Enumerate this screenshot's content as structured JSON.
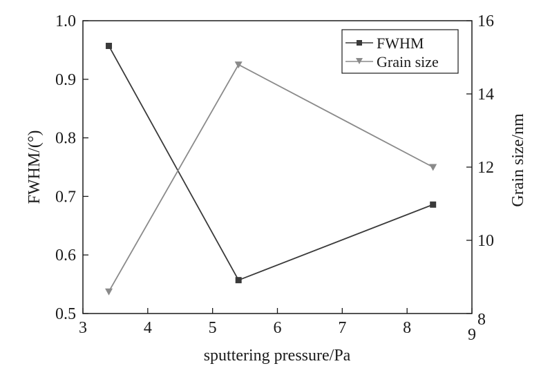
{
  "chart_data": {
    "type": "line",
    "xlabel": "sputtering pressure/Pa",
    "ylabel_left": "FWHM/(°)",
    "ylabel_right": "Grain size/nm",
    "xlim": [
      3,
      9
    ],
    "ylim_left": [
      0.5,
      1.0
    ],
    "ylim_right": [
      8,
      16
    ],
    "x_ticks": [
      "3",
      "4",
      "5",
      "6",
      "7",
      "8",
      "9"
    ],
    "y_left_ticks": [
      "0.5",
      "0.6",
      "0.7",
      "0.8",
      "0.9",
      "1.0"
    ],
    "y_right_ticks": [
      "8",
      "10",
      "12",
      "14",
      "16"
    ],
    "grid": false,
    "legend_position": "top-right",
    "series": [
      {
        "name": "FWHM",
        "axis": "left",
        "marker": "square",
        "color": "#3a3a3a",
        "x": [
          3.4,
          5.4,
          8.4
        ],
        "values": [
          0.957,
          0.557,
          0.686
        ]
      },
      {
        "name": "Grain size",
        "axis": "right",
        "marker": "triangle-down",
        "color": "#8a8a8a",
        "x": [
          3.4,
          5.4,
          8.4
        ],
        "values": [
          8.6,
          14.8,
          12.0
        ]
      }
    ]
  }
}
